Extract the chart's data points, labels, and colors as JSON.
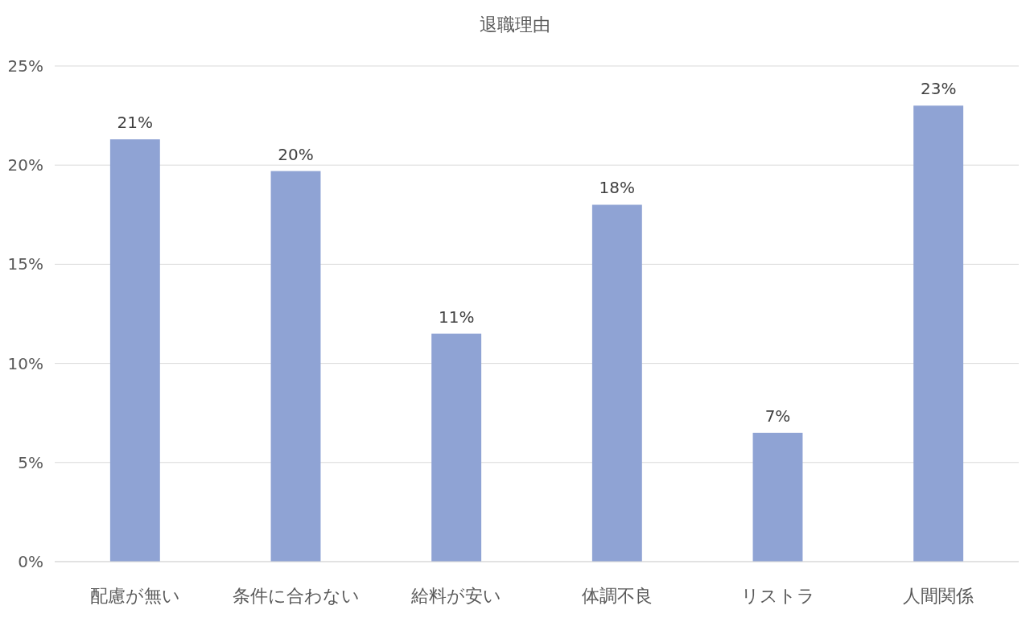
{
  "chart_data": {
    "type": "bar",
    "title": "退職理由",
    "categories": [
      "配慮が無い",
      "条件に合わない",
      "給料が安い",
      "体調不良",
      "リストラ",
      "人間関係"
    ],
    "values": [
      21.3,
      19.7,
      11.5,
      18.0,
      6.5,
      23.0
    ],
    "value_labels": [
      "21%",
      "20%",
      "11%",
      "18%",
      "7%",
      "23%"
    ],
    "color": "#8fa3d4",
    "ylim": [
      0,
      25
    ],
    "yticks": [
      {
        "value": 0,
        "label": "0%"
      },
      {
        "value": 5,
        "label": "5%"
      },
      {
        "value": 10,
        "label": "10%"
      },
      {
        "value": 15,
        "label": "15%"
      },
      {
        "value": 20,
        "label": "20%"
      },
      {
        "value": 25,
        "label": "25%"
      }
    ],
    "grid": "y"
  }
}
